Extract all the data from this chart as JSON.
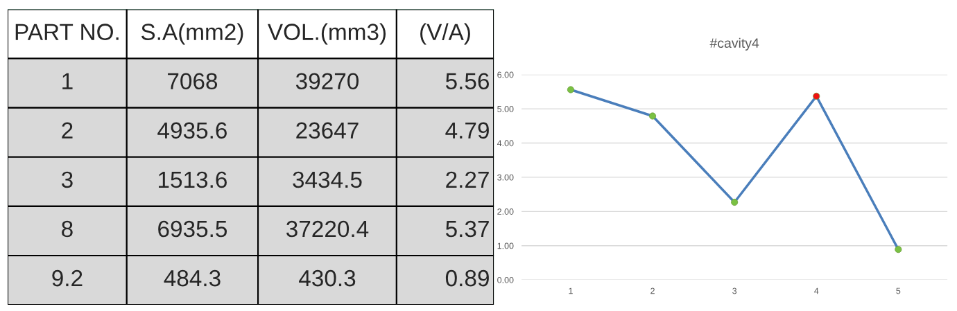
{
  "chart_data": [
    {
      "type": "other",
      "categories": [
        "PART NO.",
        "S.A(mm2)",
        "VOL.(mm3)",
        "(V/A)"
      ],
      "annotations": [
        "1",
        "7068",
        "39270",
        "5.56",
        "2",
        "4935.6",
        "23647",
        "4.79",
        "3",
        "1513.6",
        "3434.5",
        "2.27",
        "8",
        "6935.5",
        "37220.4",
        "5.37",
        "9.2",
        "484.3",
        "430.3",
        "0.89"
      ]
    },
    {
      "type": "line",
      "title": "#cavity4",
      "categories": [
        "1",
        "2",
        "3",
        "4",
        "5"
      ],
      "series": [
        {
          "color": "#4a7ebb",
          "values": [
            5.56,
            4.79,
            2.27,
            5.37,
            0.89
          ],
          "colors": [
            "#7ac143",
            "#7ac143",
            "#7ac143",
            "#ee1111",
            "#7ac143"
          ]
        }
      ],
      "ylim": [
        0,
        6
      ],
      "yticks": [
        {
          "value": 0,
          "label": "0.00"
        },
        {
          "value": 1,
          "label": "1.00"
        },
        {
          "value": 2,
          "label": "2.00"
        },
        {
          "value": 3,
          "label": "3.00"
        },
        {
          "value": 4,
          "label": "4.00"
        },
        {
          "value": 5,
          "label": "5.00"
        },
        {
          "value": 6,
          "label": "6.00"
        }
      ],
      "grid": "y",
      "marker": "circle",
      "line_style": "solid"
    }
  ]
}
